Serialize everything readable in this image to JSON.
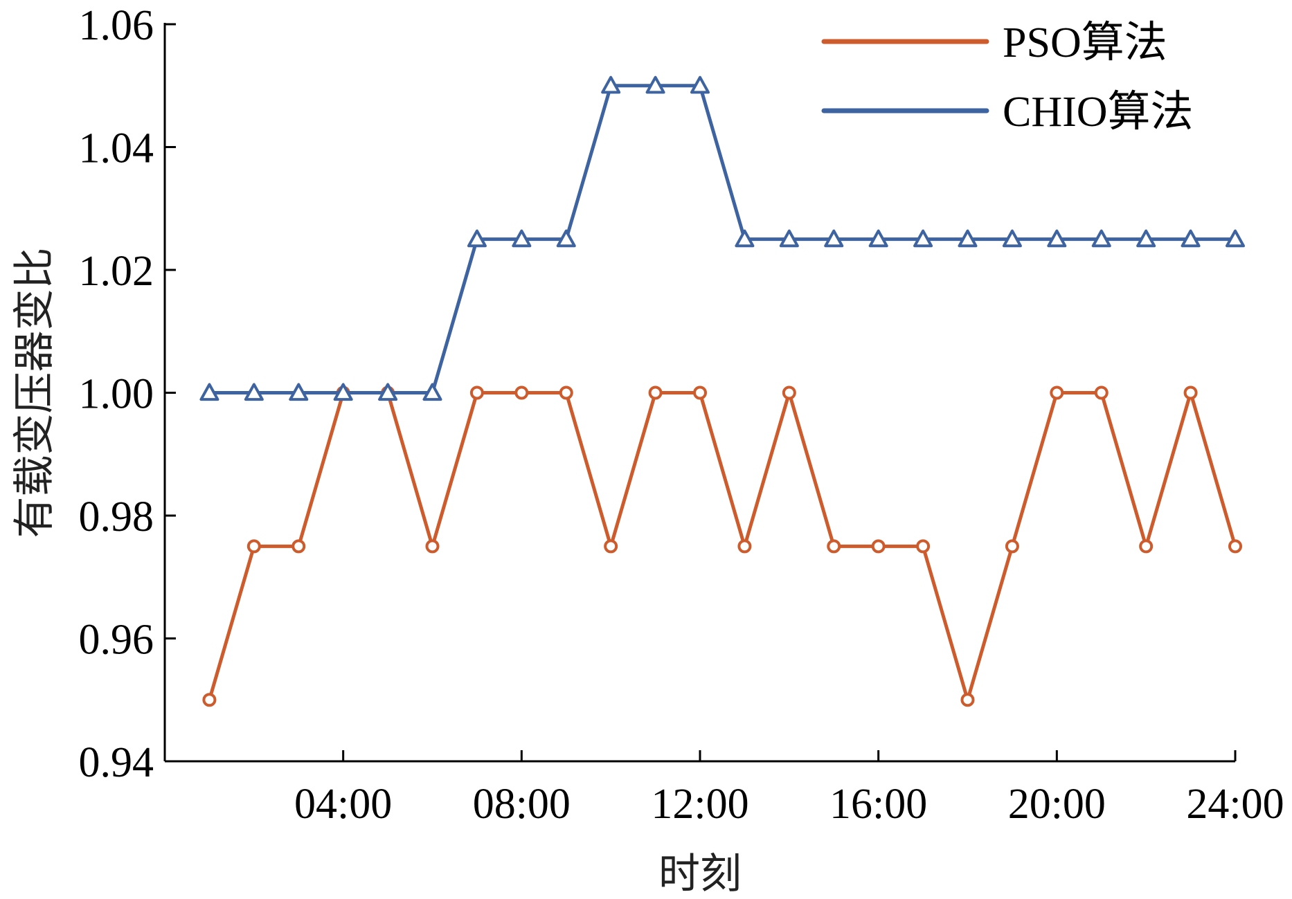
{
  "chart_data": {
    "type": "line",
    "title": "",
    "xlabel": "时刻",
    "ylabel": "有载变压器变比",
    "x": [
      1,
      2,
      3,
      4,
      5,
      6,
      7,
      8,
      9,
      10,
      11,
      12,
      13,
      14,
      15,
      16,
      17,
      18,
      19,
      20,
      21,
      22,
      23,
      24
    ],
    "x_ticks": [
      4,
      8,
      12,
      16,
      20,
      24
    ],
    "x_tick_labels": [
      "04:00",
      "08:00",
      "12:00",
      "16:00",
      "20:00",
      "24:00"
    ],
    "xlim": [
      0,
      24
    ],
    "ylim": [
      0.94,
      1.06
    ],
    "y_ticks": [
      0.94,
      0.96,
      0.98,
      1.0,
      1.02,
      1.04,
      1.06
    ],
    "y_tick_labels": [
      "0.94",
      "0.96",
      "0.98",
      "1.00",
      "1.02",
      "1.04",
      "1.06"
    ],
    "grid": false,
    "legend_position": "top-right",
    "series": [
      {
        "name": "PSO算法",
        "color": "#cd5b2c",
        "marker": "circle",
        "values": [
          0.95,
          0.975,
          0.975,
          1.0,
          1.0,
          0.975,
          1.0,
          1.0,
          1.0,
          0.975,
          1.0,
          1.0,
          0.975,
          1.0,
          0.975,
          0.975,
          0.975,
          0.95,
          0.975,
          1.0,
          1.0,
          0.975,
          1.0,
          0.975
        ]
      },
      {
        "name": "CHIO算法",
        "color": "#3e63a1",
        "marker": "triangle",
        "values": [
          1.0,
          1.0,
          1.0,
          1.0,
          1.0,
          1.0,
          1.025,
          1.025,
          1.025,
          1.05,
          1.05,
          1.05,
          1.025,
          1.025,
          1.025,
          1.025,
          1.025,
          1.025,
          1.025,
          1.025,
          1.025,
          1.025,
          1.025,
          1.025
        ]
      }
    ]
  }
}
